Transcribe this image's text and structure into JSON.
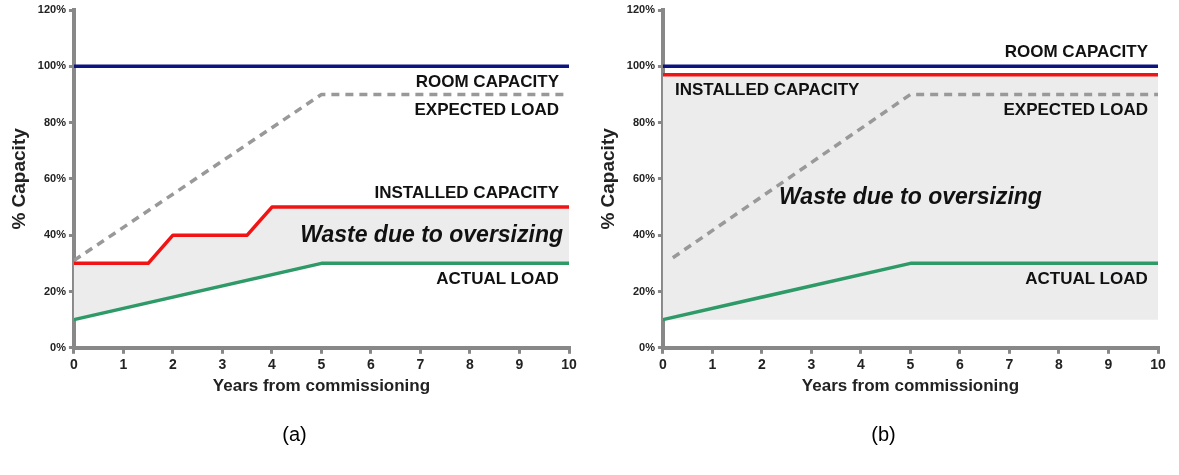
{
  "chart_data": [
    {
      "type": "line",
      "xlabel": "Years from commissioning",
      "ylabel": "% Capacity",
      "xlim": [
        0,
        10
      ],
      "xticks": [
        0,
        1,
        2,
        3,
        4,
        5,
        6,
        7,
        8,
        9,
        10
      ],
      "ylim": [
        0,
        120
      ],
      "yticks": [
        {
          "value": 0,
          "label": "0%"
        },
        {
          "value": 20,
          "label": "20%"
        },
        {
          "value": 40,
          "label": "40%"
        },
        {
          "value": 60,
          "label": "60%"
        },
        {
          "value": 80,
          "label": "80%"
        },
        {
          "value": 100,
          "label": "100%"
        },
        {
          "value": 120,
          "label": "120%"
        }
      ],
      "grid": false,
      "legend": false,
      "marker": "none",
      "series": [
        {
          "name": "ROOM CAPACITY",
          "color": "#0c1482",
          "x": [
            0,
            10
          ],
          "values": [
            100,
            100
          ]
        },
        {
          "name": "EXPECTED LOAD",
          "color": "#999999",
          "line_style": "dashed",
          "x": [
            0,
            5,
            10
          ],
          "values": [
            31,
            90,
            90
          ]
        },
        {
          "name": "INSTALLED CAPACITY",
          "color": "#f01414",
          "x": [
            0,
            1.5,
            2,
            3.5,
            4,
            5,
            10
          ],
          "values": [
            30,
            30,
            40,
            40,
            50,
            50,
            50
          ],
          "lower": [
            10,
            16,
            18,
            24,
            26,
            30,
            30
          ],
          "upper": [
            30,
            30,
            40,
            40,
            50,
            50,
            50
          ]
        },
        {
          "name": "ACTUAL LOAD",
          "color": "#2e9a68",
          "x": [
            0,
            5,
            10
          ],
          "values": [
            10,
            30,
            30
          ]
        }
      ],
      "annotations": [
        "Waste due to oversizing",
        "(a)"
      ]
    },
    {
      "type": "line",
      "xlabel": "Years from commissioning",
      "ylabel": "% Capacity",
      "xlim": [
        0,
        10
      ],
      "xticks": [
        0,
        1,
        2,
        3,
        4,
        5,
        6,
        7,
        8,
        9,
        10
      ],
      "ylim": [
        0,
        120
      ],
      "yticks": [
        {
          "value": 0,
          "label": "0%"
        },
        {
          "value": 20,
          "label": "20%"
        },
        {
          "value": 40,
          "label": "40%"
        },
        {
          "value": 60,
          "label": "60%"
        },
        {
          "value": 80,
          "label": "80%"
        },
        {
          "value": 100,
          "label": "100%"
        },
        {
          "value": 120,
          "label": "120%"
        }
      ],
      "grid": false,
      "legend": false,
      "marker": "none",
      "series": [
        {
          "name": "ROOM CAPACITY",
          "color": "#0c1482",
          "x": [
            0,
            10
          ],
          "values": [
            100,
            100
          ]
        },
        {
          "name": "INSTALLED CAPACITY",
          "color": "#f01414",
          "x": [
            0,
            10
          ],
          "values": [
            97,
            97
          ],
          "lower": [
            10,
            10
          ],
          "upper": [
            97,
            97
          ]
        },
        {
          "name": "EXPECTED LOAD",
          "color": "#999999",
          "line_style": "dashed",
          "x": [
            0.2,
            5,
            10
          ],
          "values": [
            32,
            90,
            90
          ]
        },
        {
          "name": "ACTUAL LOAD",
          "color": "#2e9a68",
          "x": [
            0,
            5,
            5,
            10
          ],
          "values": [
            10,
            30,
            30,
            30
          ]
        }
      ],
      "annotations": [
        "Waste due to oversizing",
        "(b)"
      ]
    }
  ]
}
